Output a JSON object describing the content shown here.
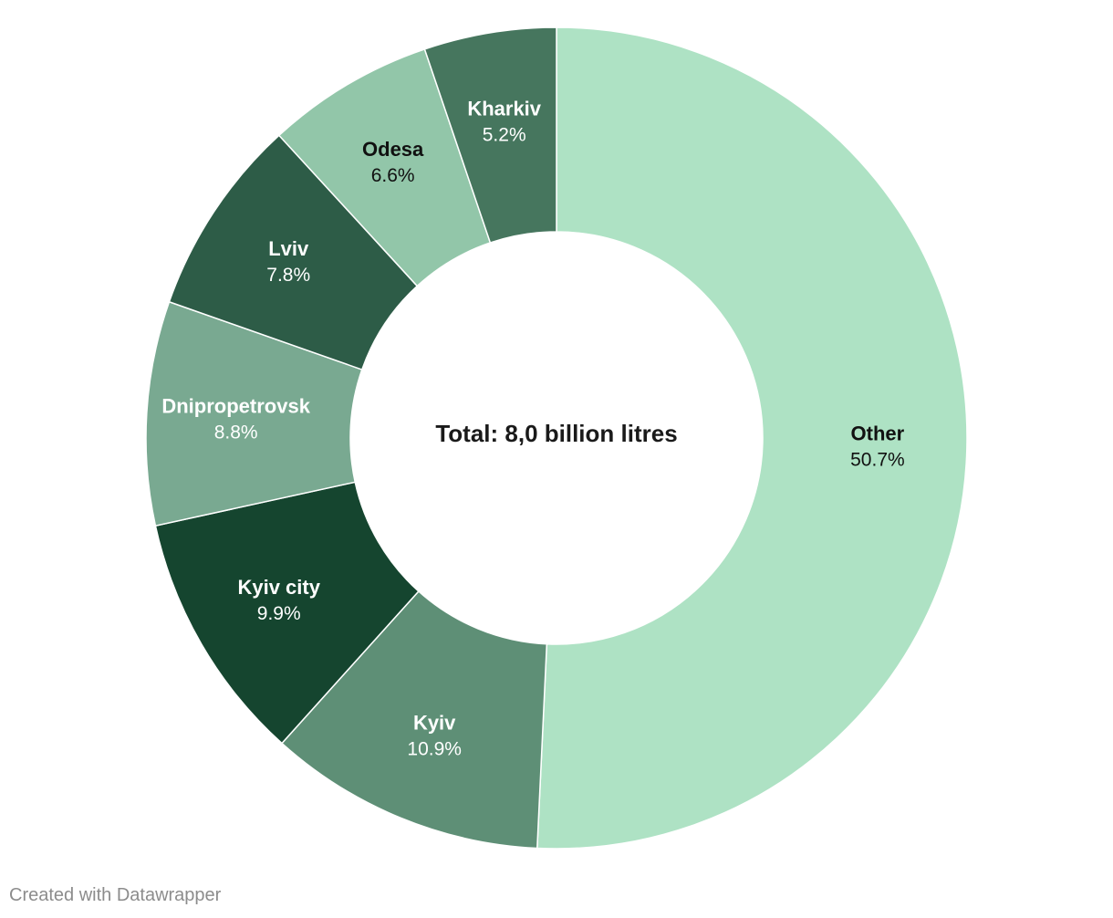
{
  "chart_data": {
    "type": "pie",
    "variant": "donut",
    "start": "top, clockwise",
    "center_text": "Total: 8,0 billion litres",
    "slices": [
      {
        "name": "Other",
        "value": 50.7,
        "label": "50.7%",
        "color": "#aee2c4",
        "text_color": "#111111"
      },
      {
        "name": "Kyiv",
        "value": 10.9,
        "label": "10.9%",
        "color": "#5e8f76",
        "text_color": "#ffffff"
      },
      {
        "name": "Kyiv city",
        "value": 9.9,
        "label": "9.9%",
        "color": "#15452f",
        "text_color": "#ffffff"
      },
      {
        "name": "Dnipropetrovsk",
        "value": 8.8,
        "label": "8.8%",
        "color": "#79a991",
        "text_color": "#ffffff"
      },
      {
        "name": "Lviv",
        "value": 7.8,
        "label": "7.8%",
        "color": "#2d5c47",
        "text_color": "#ffffff"
      },
      {
        "name": "Odesa",
        "value": 6.6,
        "label": "6.6%",
        "color": "#92c6a9",
        "text_color": "#111111"
      },
      {
        "name": "Kharkiv",
        "value": 5.2,
        "label": "5.2%",
        "color": "#46765e",
        "text_color": "#ffffff"
      }
    ]
  },
  "footer": {
    "credit": "Created with Datawrapper"
  }
}
